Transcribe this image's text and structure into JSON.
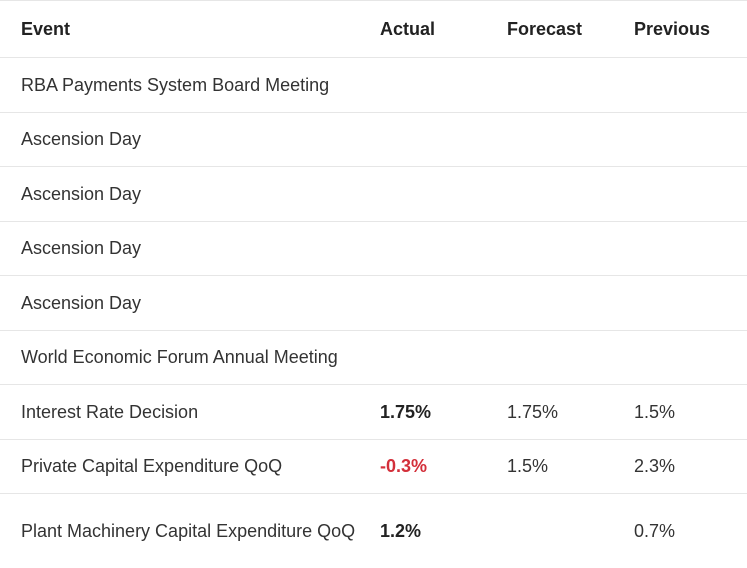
{
  "header": {
    "event": "Event",
    "actual": "Actual",
    "forecast": "Forecast",
    "previous": "Previous"
  },
  "rows": [
    {
      "event": "RBA Payments System Board Meeting",
      "actual": "",
      "forecast": "",
      "previous": ""
    },
    {
      "event": "Ascension Day",
      "actual": "",
      "forecast": "",
      "previous": ""
    },
    {
      "event": "Ascension Day",
      "actual": "",
      "forecast": "",
      "previous": ""
    },
    {
      "event": "Ascension Day",
      "actual": "",
      "forecast": "",
      "previous": ""
    },
    {
      "event": "Ascension Day",
      "actual": "",
      "forecast": "",
      "previous": ""
    },
    {
      "event": "World Economic Forum Annual Meeting",
      "actual": "",
      "forecast": "",
      "previous": ""
    },
    {
      "event": "Interest Rate Decision",
      "actual": "1.75%",
      "forecast": "1.75%",
      "previous": "1.5%"
    },
    {
      "event": "Private Capital Expenditure QoQ",
      "actual": "-0.3%",
      "forecast": "1.5%",
      "previous": "2.3%"
    },
    {
      "event": "Plant Machinery Capital Expenditure QoQ",
      "actual": "1.2%",
      "forecast": "",
      "previous": "0.7%"
    }
  ],
  "colors": {
    "negative_actual": "#d32f3a",
    "divider": "#e6e6e6"
  }
}
